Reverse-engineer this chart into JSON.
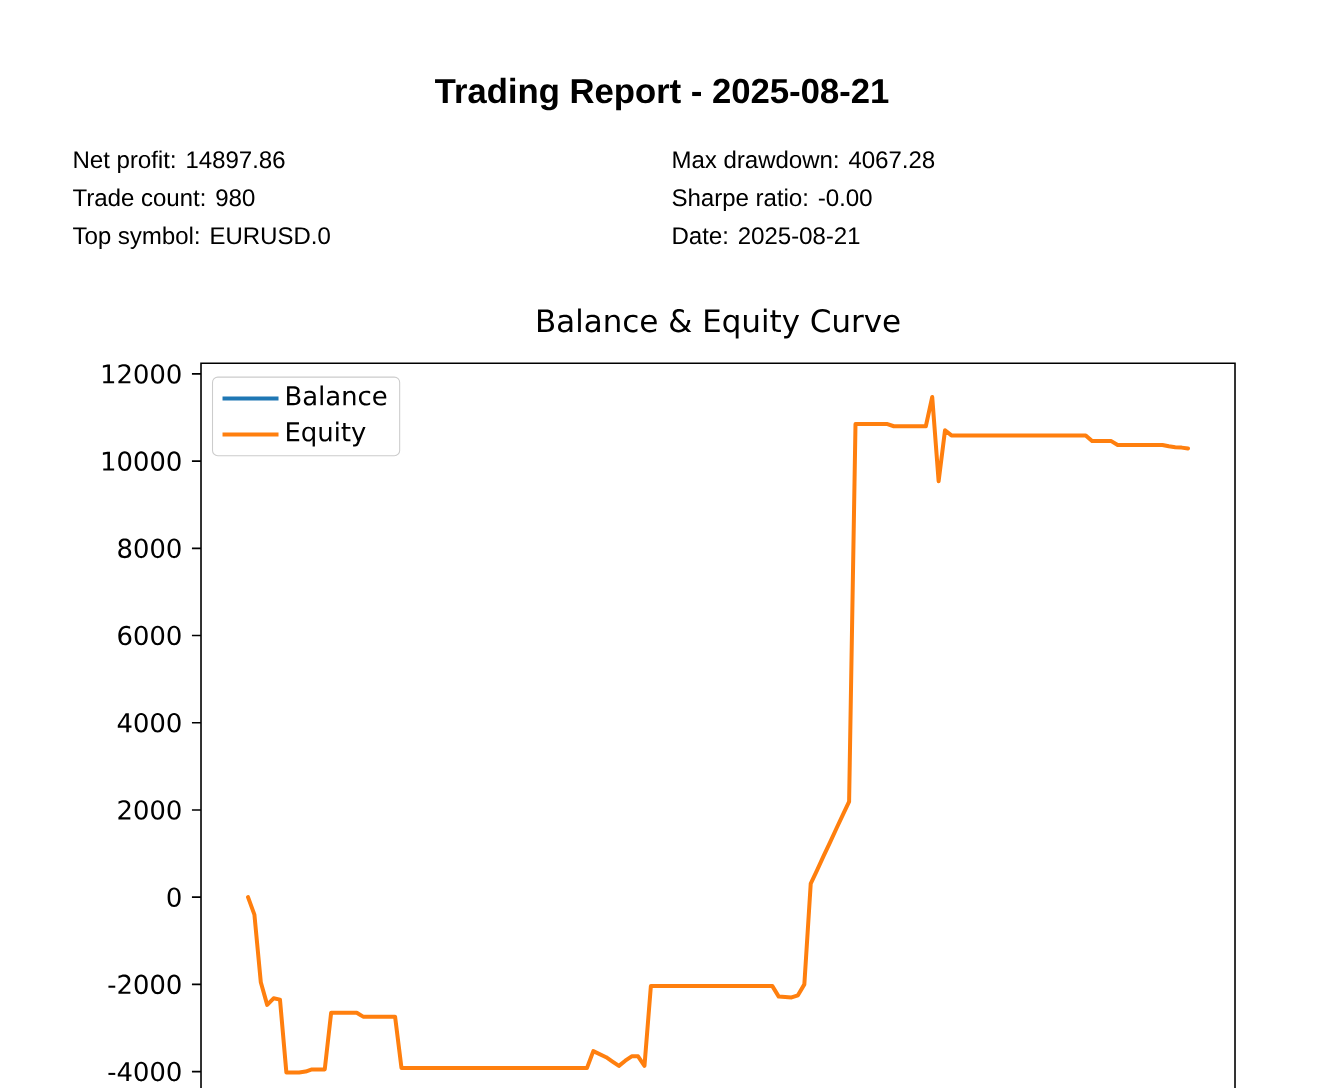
{
  "chart_data": {
    "type": "line",
    "title": "Trading Report - 2025-08-21",
    "subtitle": "Balance & Equity Curve",
    "annotations": [
      "Net profit: 14897.86",
      "Trade count: 980",
      "Top symbol: EURUSD.0",
      "Max drawdown: 4067.28",
      "Sharpe ratio: -0.00",
      "Date: 2025-08-21"
    ],
    "categories": [
      null,
      null,
      null,
      null,
      null,
      null,
      null,
      null,
      null,
      null,
      null,
      null,
      null,
      null,
      null,
      null,
      null,
      null,
      null,
      null,
      null,
      null,
      null,
      null,
      null,
      null,
      null,
      null,
      null,
      null,
      null,
      null,
      null,
      null,
      null,
      null,
      null,
      null,
      null,
      null,
      null,
      null,
      null,
      null,
      null,
      null,
      null,
      null,
      null,
      null,
      null,
      null,
      null,
      null,
      null,
      null,
      null,
      null,
      null,
      null,
      null,
      null,
      null,
      null,
      null,
      null,
      null,
      null,
      null,
      null,
      null,
      null,
      null,
      null,
      null,
      null,
      null,
      null,
      null,
      null,
      null,
      null,
      null,
      null,
      null,
      null,
      null,
      null,
      null,
      null,
      null,
      null,
      null,
      null,
      null,
      null,
      null,
      null,
      null,
      null,
      null,
      null,
      null,
      null,
      null,
      null,
      null,
      null,
      null,
      null,
      null,
      null,
      null,
      null,
      null,
      null,
      null,
      null,
      null,
      null,
      null,
      null,
      null,
      null,
      null,
      null,
      null,
      null,
      null,
      null,
      null,
      null,
      null,
      null,
      null,
      null,
      null,
      null,
      null,
      null,
      null,
      null,
      null,
      null,
      null,
      null,
      null,
      null
    ],
    "series": [
      {
        "name": "Balance",
        "color": "#1f77b4",
        "values": [
          null,
          null,
          null,
          null,
          null,
          null,
          null,
          null,
          null,
          null,
          null,
          null,
          null,
          null,
          null,
          null,
          null,
          null,
          null,
          null,
          null,
          null,
          null,
          null,
          null,
          null,
          null,
          null,
          null,
          null,
          null,
          null,
          null,
          null,
          null,
          null,
          null,
          null,
          null,
          null,
          null,
          null,
          null,
          null,
          null,
          null,
          null,
          null,
          null,
          null,
          null,
          null,
          null,
          null,
          null,
          null,
          null,
          null,
          null,
          null,
          null,
          null,
          null,
          null,
          null,
          null,
          null,
          null,
          null,
          null,
          null,
          null,
          null,
          null,
          null,
          null,
          null,
          null,
          null,
          null,
          null,
          null,
          null,
          null,
          null,
          null,
          null,
          null,
          null,
          null,
          null,
          null,
          null,
          null,
          null,
          null,
          null,
          null,
          null,
          null,
          null,
          null,
          null,
          null,
          null,
          null,
          null,
          null,
          null,
          null,
          null,
          null,
          null,
          null,
          null,
          null,
          null,
          null,
          null,
          null,
          null,
          null,
          null,
          null,
          null,
          null,
          null,
          null,
          null,
          null,
          null,
          null,
          null,
          null,
          null,
          null,
          null,
          null,
          null,
          null,
          null,
          null,
          null,
          null,
          null,
          null,
          null,
          null
        ]
      },
      {
        "name": "Equity",
        "color": "#ff7f0e",
        "values": [
          0,
          -400,
          -1950,
          -2470,
          -2320,
          -2350,
          -4020,
          -4020,
          -4020,
          -4000,
          -3950,
          -3950,
          -3950,
          -2650,
          -2650,
          -2650,
          -2650,
          -2650,
          -2740,
          -2740,
          -2740,
          -2740,
          -2740,
          -2740,
          -3920,
          -3920,
          -3920,
          -3920,
          -3920,
          -3920,
          -3920,
          -3920,
          -3920,
          -3920,
          -3920,
          -3920,
          -3920,
          -3920,
          -3920,
          -3920,
          -3920,
          -3920,
          -3920,
          -3920,
          -3920,
          -3920,
          -3920,
          -3920,
          -3920,
          -3920,
          -3920,
          -3920,
          -3920,
          -3920,
          -3530,
          -3600,
          -3670,
          -3770,
          -3870,
          -3750,
          -3650,
          -3650,
          -3870,
          -2040,
          -2040,
          -2040,
          -2040,
          -2040,
          -2040,
          -2040,
          -2040,
          -2040,
          -2040,
          -2040,
          -2040,
          -2040,
          -2040,
          -2040,
          -2040,
          -2040,
          -2040,
          -2040,
          -2040,
          -2280,
          -2290,
          -2300,
          -2250,
          -2000,
          310,
          620,
          940,
          1250,
          1570,
          1880,
          2190,
          10850,
          10850,
          10850,
          10850,
          10850,
          10850,
          10800,
          10800,
          10800,
          10800,
          10800,
          10800,
          11470,
          9540,
          10710,
          10590,
          10590,
          10590,
          10590,
          10590,
          10590,
          10590,
          10590,
          10590,
          10590,
          10590,
          10590,
          10590,
          10590,
          10590,
          10590,
          10590,
          10590,
          10590,
          10590,
          10590,
          10590,
          10460,
          10460,
          10460,
          10460,
          10370,
          10370,
          10370,
          10370,
          10370,
          10370,
          10370,
          10370,
          10340,
          10320,
          10310,
          10290
        ]
      }
    ],
    "ylim": [
      -4826,
      12246
    ],
    "yticks": [
      -4000,
      -2000,
      0,
      2000,
      4000,
      6000,
      8000,
      10000,
      12000
    ],
    "tick_labels": "y",
    "legend": "top left",
    "marker": "none",
    "line_style": "solid"
  }
}
